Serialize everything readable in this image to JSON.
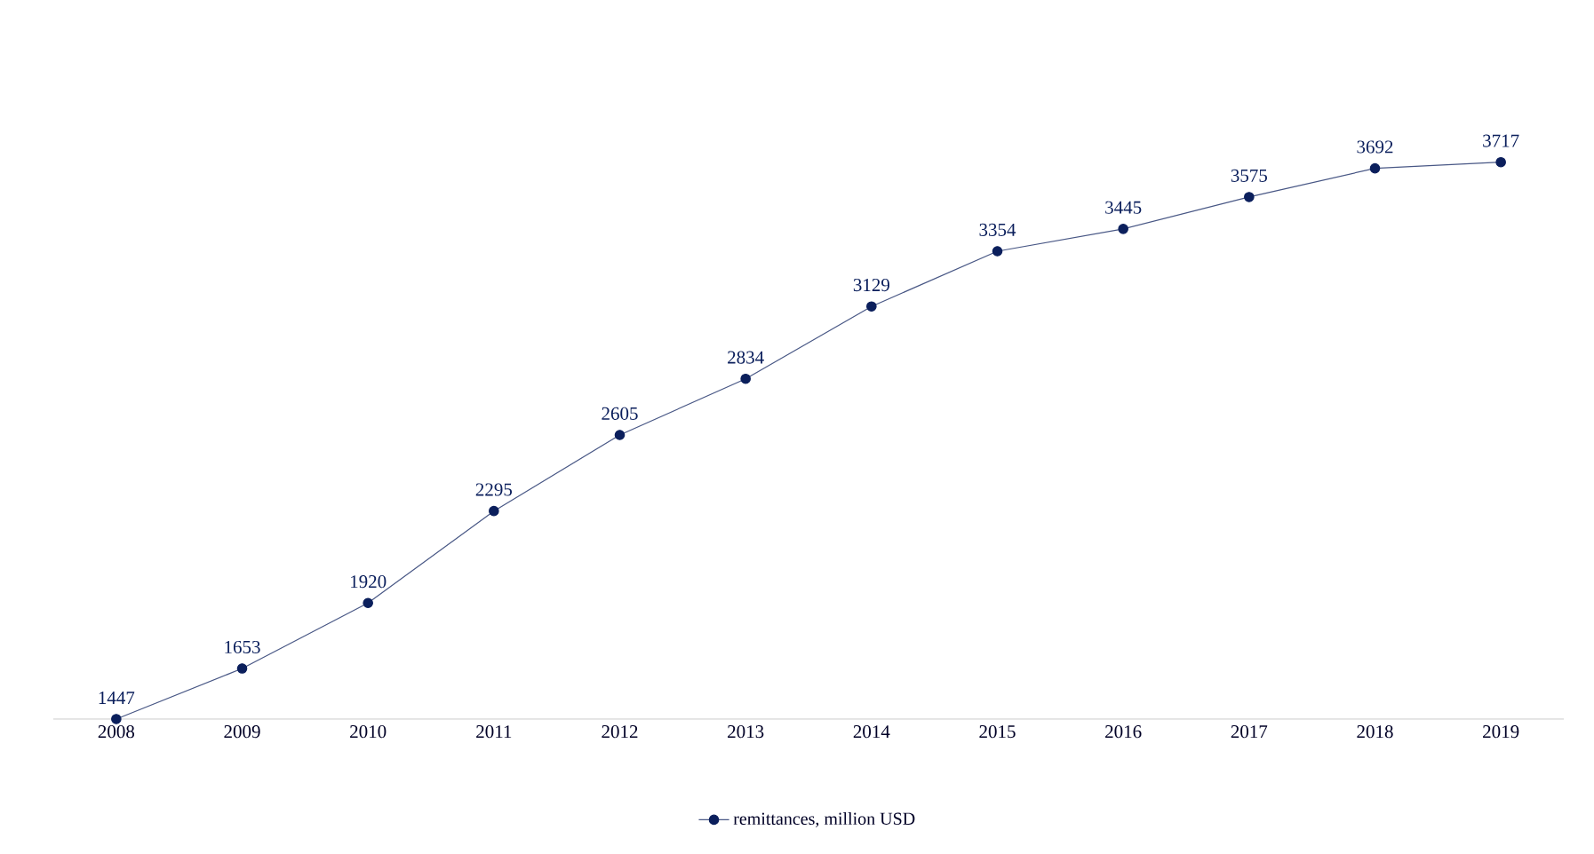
{
  "chart_data": {
    "type": "line",
    "categories": [
      "2008",
      "2009",
      "2010",
      "2011",
      "2012",
      "2013",
      "2014",
      "2015",
      "2016",
      "2017",
      "2018",
      "2019"
    ],
    "series": [
      {
        "name": "remittances, million USD",
        "color": "#0b1f5c",
        "values": [
          1447,
          1653,
          1920,
          2295,
          2605,
          2834,
          3129,
          3354,
          3445,
          3575,
          3692,
          3717
        ]
      }
    ],
    "tick_labels": "x",
    "data_labels": true,
    "marker": "circle",
    "line_style": "solid",
    "legend": "bottom",
    "grid": false
  }
}
